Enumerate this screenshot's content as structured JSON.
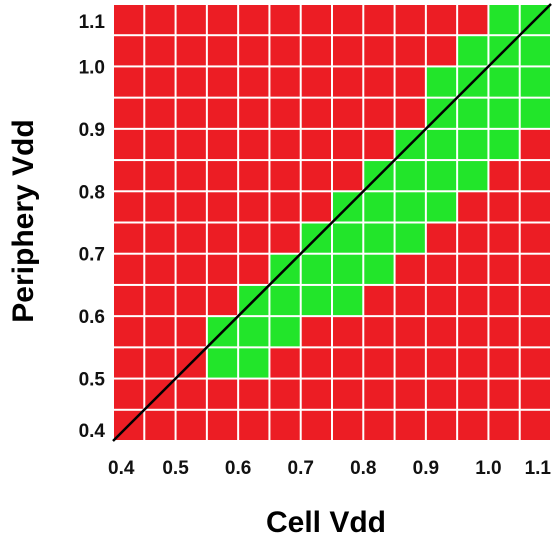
{
  "chart_data": {
    "type": "heatmap",
    "title": "",
    "xlabel": "Cell Vdd",
    "ylabel": "Periphery Vdd",
    "x_ticks": [
      "0.4",
      "0.5",
      "0.6",
      "0.7",
      "0.8",
      "0.9",
      "1.0",
      "1.1"
    ],
    "y_ticks": [
      "0.4",
      "0.5",
      "0.6",
      "0.7",
      "0.8",
      "0.9",
      "1.0",
      "1.1"
    ],
    "xlim": [
      0.4,
      1.1
    ],
    "ylim": [
      0.4,
      1.1
    ],
    "grid_step": 0.05,
    "legend": "none",
    "status_colors": {
      "pass": "#22e52a",
      "fail": "#ec1d24"
    },
    "diagonal_line": {
      "from": [
        0.4,
        0.4
      ],
      "to": [
        1.1,
        1.1
      ],
      "color": "#000000"
    },
    "pass_cells_by_row": [
      {
        "y": [
          0.5,
          0.55
        ],
        "x_ranges": [
          [
            0.55,
            0.65
          ]
        ]
      },
      {
        "y": [
          0.55,
          0.6
        ],
        "x_ranges": [
          [
            0.55,
            0.7
          ]
        ]
      },
      {
        "y": [
          0.6,
          0.65
        ],
        "x_ranges": [
          [
            0.6,
            0.8
          ]
        ]
      },
      {
        "y": [
          0.65,
          0.7
        ],
        "x_ranges": [
          [
            0.65,
            0.85
          ]
        ]
      },
      {
        "y": [
          0.7,
          0.75
        ],
        "x_ranges": [
          [
            0.7,
            0.9
          ]
        ]
      },
      {
        "y": [
          0.75,
          0.8
        ],
        "x_ranges": [
          [
            0.75,
            0.95
          ]
        ]
      },
      {
        "y": [
          0.8,
          0.85
        ],
        "x_ranges": [
          [
            0.8,
            1.0
          ]
        ]
      },
      {
        "y": [
          0.85,
          0.9
        ],
        "x_ranges": [
          [
            0.85,
            1.05
          ]
        ]
      },
      {
        "y": [
          0.9,
          0.95
        ],
        "x_ranges": [
          [
            0.9,
            1.1
          ]
        ]
      },
      {
        "y": [
          0.95,
          1.0
        ],
        "x_ranges": [
          [
            0.9,
            1.1
          ]
        ]
      },
      {
        "y": [
          1.0,
          1.05
        ],
        "x_ranges": [
          [
            0.95,
            1.1
          ]
        ]
      },
      {
        "y": [
          1.05,
          1.1
        ],
        "x_ranges": [
          [
            1.0,
            1.1
          ]
        ]
      }
    ]
  }
}
